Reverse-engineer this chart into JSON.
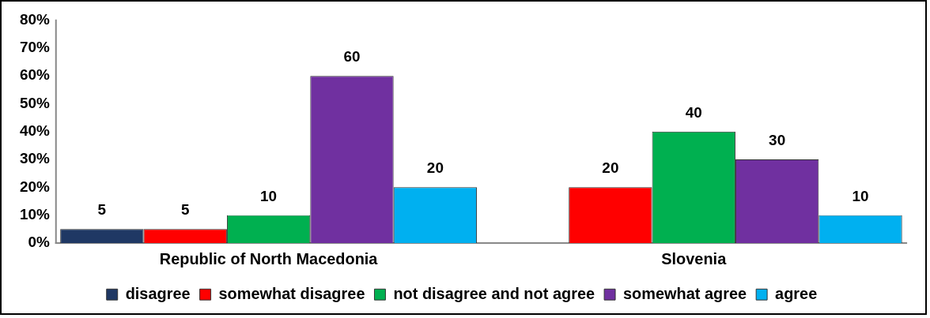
{
  "chart_data": {
    "type": "bar",
    "categories": [
      "Republic of North Macedonia",
      "Slovenia"
    ],
    "series": [
      {
        "name": "disagree",
        "color": "#1f3864",
        "values": [
          5,
          null
        ]
      },
      {
        "name": "somewhat disagree",
        "color": "#ff0000",
        "values": [
          5,
          20
        ]
      },
      {
        "name": "not disagree and not agree",
        "color": "#00b050",
        "values": [
          10,
          40
        ]
      },
      {
        "name": "somewhat agree",
        "color": "#7030a0",
        "values": [
          60,
          30
        ]
      },
      {
        "name": "agree",
        "color": "#00b0f0",
        "values": [
          20,
          10
        ]
      }
    ],
    "ylim": [
      0,
      80
    ],
    "yticks": [
      {
        "value": 0,
        "label": "0%"
      },
      {
        "value": 10,
        "label": "10%"
      },
      {
        "value": 20,
        "label": "20%"
      },
      {
        "value": 30,
        "label": "30%"
      },
      {
        "value": 40,
        "label": "40%"
      },
      {
        "value": 50,
        "label": "50%"
      },
      {
        "value": 60,
        "label": "60%"
      },
      {
        "value": 70,
        "label": "70%"
      },
      {
        "value": 80,
        "label": "80%"
      }
    ],
    "data_labels": true,
    "grid": false,
    "legend": "bottom"
  }
}
